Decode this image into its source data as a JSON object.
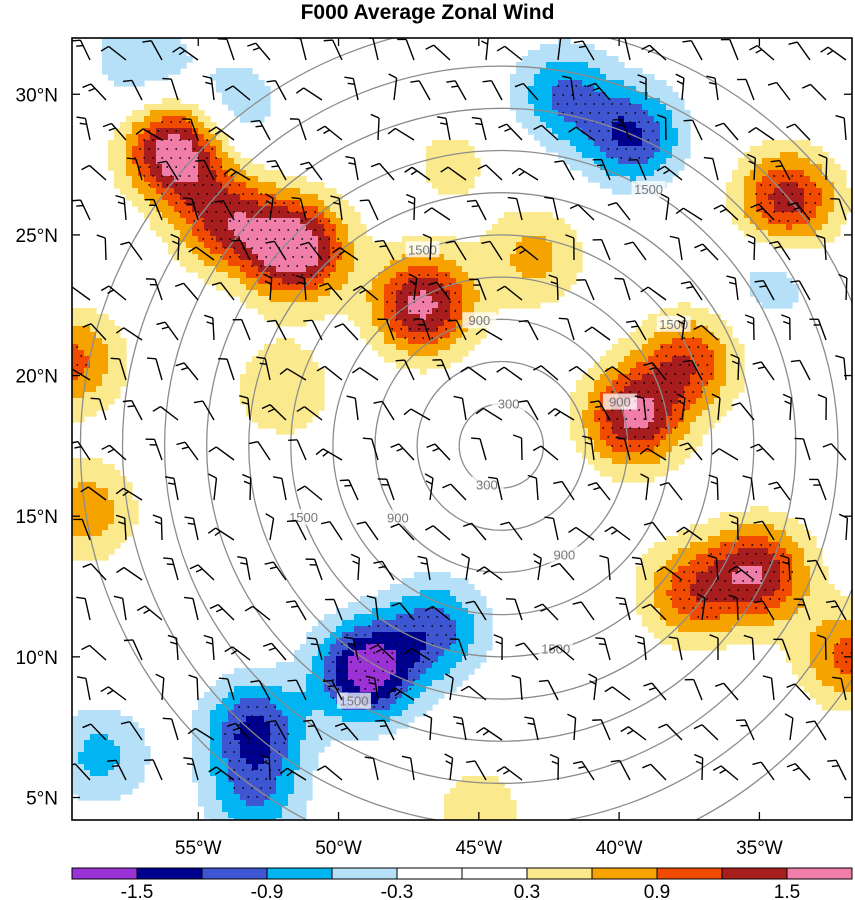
{
  "chart_data": {
    "type": "heatmap",
    "title": "F000 Average Zonal Wind",
    "x_ticks": [
      {
        "lon": -55,
        "label": "55°W"
      },
      {
        "lon": -50,
        "label": "50°W"
      },
      {
        "lon": -45,
        "label": "45°W"
      },
      {
        "lon": -40,
        "label": "40°W"
      },
      {
        "lon": -35,
        "label": "35°W"
      }
    ],
    "y_ticks": [
      {
        "lat": 5,
        "label": "5°N"
      },
      {
        "lat": 10,
        "label": "10°N"
      },
      {
        "lat": 15,
        "label": "15°N"
      },
      {
        "lat": 20,
        "label": "20°N"
      },
      {
        "lat": 25,
        "label": "25°N"
      },
      {
        "lat": 30,
        "label": "30°N"
      }
    ],
    "xlim": [
      -59.5,
      -31.7
    ],
    "ylim": [
      4.2,
      32.0
    ],
    "colorbar": {
      "boundaries": [
        -1.8,
        -1.5,
        -1.2,
        -0.9,
        -0.6,
        -0.3,
        0.0,
        0.3,
        0.6,
        0.9,
        1.2,
        1.5,
        1.8
      ],
      "labels": [
        "-1.5",
        "-0.9",
        "-0.3",
        "0.3",
        "0.9",
        "1.5"
      ],
      "colors": [
        "#9b32d6",
        "#00008f",
        "#3e56d1",
        "#00b5f2",
        "#b5e0f7",
        "#ffffff",
        "#ffffff",
        "#fbe98e",
        "#f6a300",
        "#f04b00",
        "#a81e1e",
        "#f07ea8"
      ]
    },
    "anomaly_centers": [
      {
        "lon": -55.8,
        "lat": 28.0,
        "value": 1.8
      },
      {
        "lon": -51.5,
        "lat": 24.5,
        "value": 1.8
      },
      {
        "lon": -47.0,
        "lat": 22.5,
        "value": 1.6
      },
      {
        "lon": -54.0,
        "lat": 25.5,
        "value": 1.2
      },
      {
        "lon": -43.0,
        "lat": 24.2,
        "value": 0.7
      },
      {
        "lon": -39.5,
        "lat": 18.5,
        "value": 1.5
      },
      {
        "lon": -37.5,
        "lat": 20.5,
        "value": 1.1
      },
      {
        "lon": -35.0,
        "lat": 13.0,
        "value": 1.4
      },
      {
        "lon": -37.5,
        "lat": 12.3,
        "value": 1.0
      },
      {
        "lon": -34.0,
        "lat": 26.2,
        "value": 1.4
      },
      {
        "lon": -59.5,
        "lat": 20.5,
        "value": 1.0
      },
      {
        "lon": -31.8,
        "lat": 10.0,
        "value": 1.0
      },
      {
        "lon": -59.0,
        "lat": 15.2,
        "value": 0.8
      },
      {
        "lon": -52.0,
        "lat": 19.5,
        "value": 0.6
      },
      {
        "lon": -49.0,
        "lat": 9.5,
        "value": -1.7
      },
      {
        "lon": -53.0,
        "lat": 7.5,
        "value": -1.2
      },
      {
        "lon": -46.5,
        "lat": 11.0,
        "value": -1.0
      },
      {
        "lon": -39.5,
        "lat": 28.5,
        "value": -1.2
      },
      {
        "lon": -42.0,
        "lat": 30.0,
        "value": -0.9
      },
      {
        "lon": -53.8,
        "lat": 29.5,
        "value": -0.6
      },
      {
        "lon": -57.0,
        "lat": 31.2,
        "value": -0.6
      },
      {
        "lon": -34.5,
        "lat": 23.5,
        "value": -0.5
      },
      {
        "lon": -53.0,
        "lat": 5.0,
        "value": -0.8
      },
      {
        "lon": -58.5,
        "lat": 6.5,
        "value": -0.7
      },
      {
        "lon": -46.0,
        "lat": 27.5,
        "value": 0.4
      },
      {
        "lon": -45.0,
        "lat": 4.5,
        "value": 0.5
      }
    ],
    "distance_rings": {
      "center_lon": -44.2,
      "center_lat": 17.5,
      "values": [
        300,
        900,
        1500
      ],
      "labels": [
        "300",
        "900",
        "1500"
      ]
    },
    "wind_barbs": "uniform grid of barbs over the map area",
    "stippling": "dots where |anomaly| is significant",
    "grid": false
  }
}
